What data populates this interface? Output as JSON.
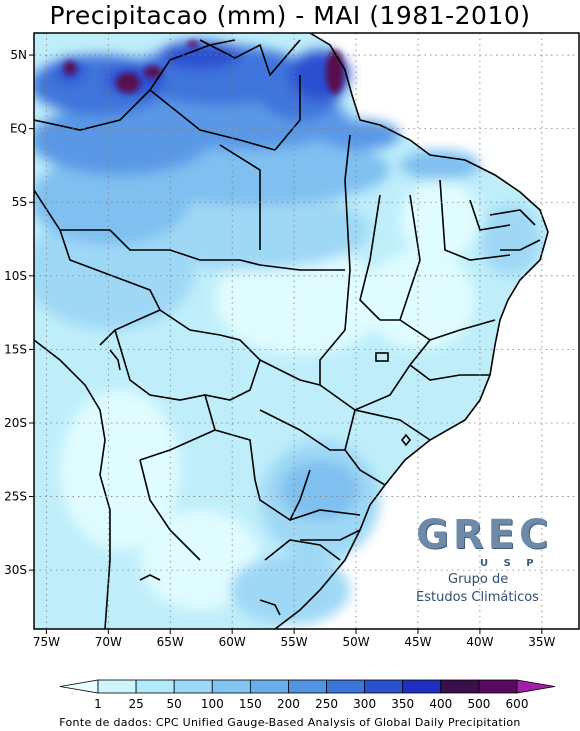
{
  "title": "Precipitacao (mm) - MAI (1981-2010)",
  "source": "Fonte de dados: CPC Unified Gauge-Based Analysis of Global Daily Precipitation",
  "logo": {
    "main": "GREC",
    "sub": "U S P",
    "line1": "Grupo de",
    "line2": "Estudos Climáticos"
  },
  "axes": {
    "lat_labels": [
      "5N",
      "EQ",
      "5S",
      "10S",
      "15S",
      "20S",
      "25S",
      "30S"
    ],
    "lat_values": [
      5,
      0,
      -5,
      -10,
      -15,
      -20,
      -25,
      -30
    ],
    "lon_labels": [
      "75W",
      "70W",
      "65W",
      "60W",
      "55W",
      "50W",
      "45W",
      "40W",
      "35W"
    ],
    "lon_values": [
      -75,
      -70,
      -65,
      -60,
      -55,
      -50,
      -45,
      -40,
      -35
    ],
    "lon_range": [
      -76,
      -32
    ],
    "lat_range": [
      -34,
      6.5
    ],
    "grid": "dotted"
  },
  "colorbar": {
    "labels": [
      "1",
      "25",
      "50",
      "100",
      "150",
      "200",
      "250",
      "300",
      "350",
      "400",
      "500",
      "600"
    ],
    "colors": [
      "#e8ffff",
      "#ccf6fb",
      "#b3eafa",
      "#9dd9f7",
      "#84c6f2",
      "#6aaeeb",
      "#5194e4",
      "#3c76da",
      "#2a52cf",
      "#1f2fc2",
      "#3a0f4c",
      "#5a0a5e",
      "#a020a8"
    ],
    "extend": "both"
  },
  "map_colors": {
    "ocean": "#ffffff",
    "base": "#bfeefa",
    "light": "#dffcff",
    "mid": "#9fd8f5",
    "med": "#7fc0f0",
    "dark": "#5a98e6",
    "deeper": "#3f74dc",
    "deep": "#2c4fd0",
    "extreme": "#5a0a50",
    "border": "#000000"
  }
}
